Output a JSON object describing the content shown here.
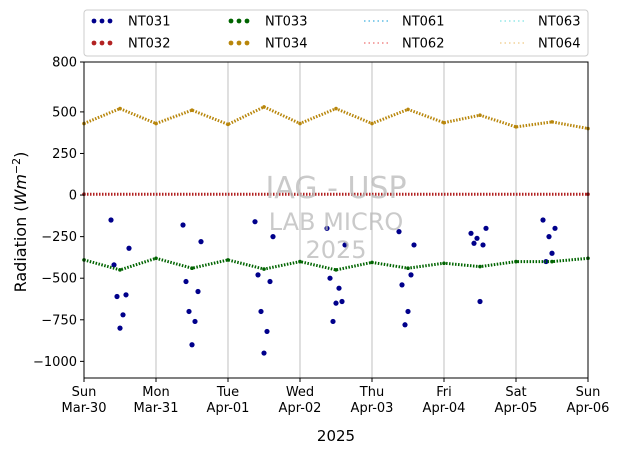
{
  "chart_data": {
    "type": "scatter",
    "title": "",
    "xlabel": "2025",
    "ylabel": "Radiation (Wm⁻²)",
    "ylabel_main": "Radiation (",
    "ylabel_unit": "Wm",
    "ylabel_exp": "−2",
    "ylabel_close": ")",
    "ylim": [
      -1100,
      800
    ],
    "xlim": [
      "2025-03-30",
      "2025-04-06"
    ],
    "yticks": [
      800,
      500,
      250,
      0,
      -250,
      -500,
      -750,
      -1000
    ],
    "ytick_labels": [
      "800",
      "500",
      "250",
      "0",
      "−250",
      "−500",
      "−750",
      "−1000"
    ],
    "xticks": [
      {
        "date": "2025-03-30",
        "day": "Sun",
        "label": "Mar-30"
      },
      {
        "date": "2025-03-31",
        "day": "Mon",
        "label": "Mar-31"
      },
      {
        "date": "2025-04-01",
        "day": "Tue",
        "label": "Apr-01"
      },
      {
        "date": "2025-04-02",
        "day": "Wed",
        "label": "Apr-02"
      },
      {
        "date": "2025-04-03",
        "day": "Thu",
        "label": "Apr-03"
      },
      {
        "date": "2025-04-04",
        "day": "Fri",
        "label": "Apr-04"
      },
      {
        "date": "2025-04-05",
        "day": "Sat",
        "label": "Apr-05"
      },
      {
        "date": "2025-04-06",
        "day": "Sun",
        "label": "Apr-06"
      }
    ],
    "grid": "vertical",
    "legend_position": "top",
    "watermark": [
      "IAG - USP",
      "LAB MICRO",
      "2025"
    ],
    "series": [
      {
        "name": "NT031",
        "color": "#00008b",
        "style": "dot",
        "points": [
          [
            "2025-03-30T09:00",
            -150
          ],
          [
            "2025-03-30T10:00",
            -420
          ],
          [
            "2025-03-30T11:00",
            -610
          ],
          [
            "2025-03-30T12:00",
            -800
          ],
          [
            "2025-03-30T13:00",
            -720
          ],
          [
            "2025-03-30T14:00",
            -600
          ],
          [
            "2025-03-30T15:00",
            -320
          ],
          [
            "2025-03-31T09:00",
            -180
          ],
          [
            "2025-03-31T10:00",
            -520
          ],
          [
            "2025-03-31T11:00",
            -700
          ],
          [
            "2025-03-31T12:00",
            -900
          ],
          [
            "2025-03-31T13:00",
            -760
          ],
          [
            "2025-03-31T14:00",
            -580
          ],
          [
            "2025-03-31T15:00",
            -280
          ],
          [
            "2025-04-01T09:00",
            -160
          ],
          [
            "2025-04-01T10:00",
            -480
          ],
          [
            "2025-04-01T11:00",
            -700
          ],
          [
            "2025-04-01T12:00",
            -950
          ],
          [
            "2025-04-01T13:00",
            -820
          ],
          [
            "2025-04-01T14:00",
            -520
          ],
          [
            "2025-04-01T15:00",
            -250
          ],
          [
            "2025-04-02T09:00",
            -200
          ],
          [
            "2025-04-02T10:00",
            -500
          ],
          [
            "2025-04-02T11:00",
            -760
          ],
          [
            "2025-04-02T12:00",
            -650
          ],
          [
            "2025-04-02T13:00",
            -560
          ],
          [
            "2025-04-02T14:00",
            -640
          ],
          [
            "2025-04-02T15:00",
            -300
          ],
          [
            "2025-04-03T09:00",
            -220
          ],
          [
            "2025-04-03T10:00",
            -540
          ],
          [
            "2025-04-03T11:00",
            -780
          ],
          [
            "2025-04-03T12:00",
            -700
          ],
          [
            "2025-04-03T13:00",
            -480
          ],
          [
            "2025-04-03T14:00",
            -300
          ],
          [
            "2025-04-04T09:00",
            -230
          ],
          [
            "2025-04-04T10:00",
            -290
          ],
          [
            "2025-04-04T11:00",
            -260
          ],
          [
            "2025-04-04T12:00",
            -640
          ],
          [
            "2025-04-04T13:00",
            -300
          ],
          [
            "2025-04-04T14:00",
            -200
          ],
          [
            "2025-04-05T09:00",
            -150
          ],
          [
            "2025-04-05T10:00",
            -400
          ],
          [
            "2025-04-05T11:00",
            -250
          ],
          [
            "2025-04-05T12:00",
            -350
          ],
          [
            "2025-04-05T13:00",
            -200
          ]
        ]
      },
      {
        "name": "NT032",
        "color": "#b22222",
        "style": "dot",
        "points": [
          [
            "2025-03-30T00:00",
            5
          ],
          [
            "2025-04-06T00:00",
            5
          ]
        ]
      },
      {
        "name": "NT033",
        "color": "#006400",
        "style": "dot",
        "points": [
          [
            "2025-03-30T00:00",
            -390
          ],
          [
            "2025-03-30T12:00",
            -450
          ],
          [
            "2025-03-31T00:00",
            -380
          ],
          [
            "2025-03-31T12:00",
            -440
          ],
          [
            "2025-04-01T00:00",
            -390
          ],
          [
            "2025-04-01T12:00",
            -445
          ],
          [
            "2025-04-02T00:00",
            -400
          ],
          [
            "2025-04-02T12:00",
            -450
          ],
          [
            "2025-04-03T00:00",
            -405
          ],
          [
            "2025-04-03T12:00",
            -440
          ],
          [
            "2025-04-04T00:00",
            -410
          ],
          [
            "2025-04-04T12:00",
            -430
          ],
          [
            "2025-04-05T00:00",
            -400
          ],
          [
            "2025-04-05T12:00",
            -400
          ],
          [
            "2025-04-06T00:00",
            -380
          ]
        ]
      },
      {
        "name": "NT034",
        "color": "#b8860b",
        "style": "dot",
        "points": [
          [
            "2025-03-30T00:00",
            430
          ],
          [
            "2025-03-30T12:00",
            520
          ],
          [
            "2025-03-31T00:00",
            430
          ],
          [
            "2025-03-31T12:00",
            510
          ],
          [
            "2025-04-01T00:00",
            425
          ],
          [
            "2025-04-01T12:00",
            530
          ],
          [
            "2025-04-02T00:00",
            430
          ],
          [
            "2025-04-02T12:00",
            520
          ],
          [
            "2025-04-03T00:00",
            430
          ],
          [
            "2025-04-03T12:00",
            515
          ],
          [
            "2025-04-04T00:00",
            435
          ],
          [
            "2025-04-04T12:00",
            480
          ],
          [
            "2025-04-05T00:00",
            410
          ],
          [
            "2025-04-05T12:00",
            440
          ],
          [
            "2025-04-06T00:00",
            400
          ]
        ]
      },
      {
        "name": "NT061",
        "color": "#87ceeb",
        "style": "dotted",
        "points": []
      },
      {
        "name": "NT062",
        "color": "#f4a6a6",
        "style": "dotted",
        "points": []
      },
      {
        "name": "NT063",
        "color": "#afeeee",
        "style": "dotted",
        "points": []
      },
      {
        "name": "NT064",
        "color": "#f5deb3",
        "style": "dotted",
        "points": []
      }
    ]
  }
}
